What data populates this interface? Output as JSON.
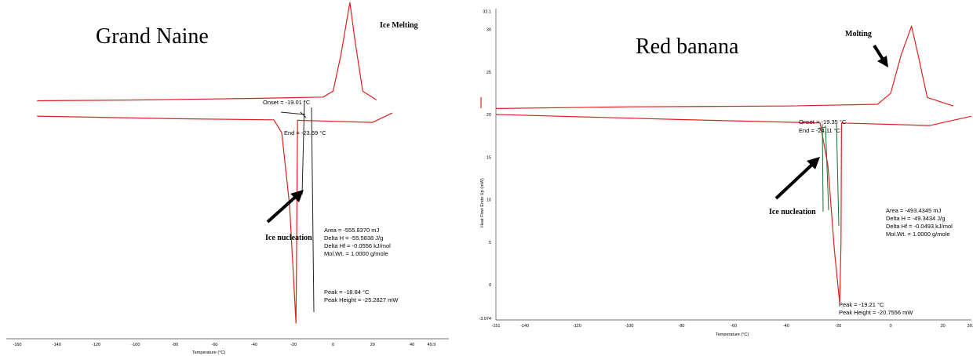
{
  "chart_data": [
    {
      "type": "line",
      "panel": "left",
      "title": "Grand Naine",
      "xlabel": "Temperature (°C)",
      "ylabel": "",
      "xlim": [
        -160,
        49.9
      ],
      "x_ticks": [
        "-160",
        "-140",
        "-120",
        "-100",
        "-80",
        "-60",
        "-40",
        "-20",
        "0",
        "20",
        "40",
        "49.9"
      ],
      "line_color": "#e02020",
      "series": [
        {
          "values": [
            {
              "x": -150,
              "y": 0.15
            },
            {
              "x": -100,
              "y": 0.3
            },
            {
              "x": -40,
              "y": 0.6
            },
            {
              "x": -5,
              "y": 0.85
            },
            {
              "x": 0,
              "y": 2
            },
            {
              "x": 4,
              "y": 9
            },
            {
              "x": 8.5,
              "y": 19
            },
            {
              "x": 11,
              "y": 12
            },
            {
              "x": 15,
              "y": 2
            },
            {
              "x": 22,
              "y": 0.3
            }
          ]
        },
        {
          "values": [
            {
              "x": -150,
              "y": -2.8
            },
            {
              "x": -80,
              "y": -3.3
            },
            {
              "x": -30,
              "y": -3.5
            },
            {
              "x": -26,
              "y": -6
            },
            {
              "x": -22,
              "y": -20
            },
            {
              "x": -18.8,
              "y": -42.5
            },
            {
              "x": -18.5,
              "y": -30
            },
            {
              "x": -18,
              "y": -3.6
            },
            {
              "x": 20,
              "y": -4
            },
            {
              "x": 30,
              "y": -2.2
            }
          ]
        }
      ],
      "annotations": {
        "peak_label": "Ice Melting",
        "arrow_label": "Ice nucleation",
        "onset": "Onset = -19.01 °C",
        "end": "End = -23.69 °C",
        "area": "Area = -555.8370 mJ",
        "delta_h": "Delta H = -55.5838 J/g",
        "delta_hf": "Delta Hf = -0.0556 kJ/mol",
        "mol_wt": "Mol.Wt. = 1.0000 g/mole",
        "peak": "Peak = -18.84 °C",
        "peak_height": "Peak Height = -25.2827 mW"
      }
    },
    {
      "type": "line",
      "panel": "right",
      "title": "Red banana",
      "xlabel": "Temperature (°C)",
      "ylabel": "Heat Flow Endo Up (mW)",
      "xlim": [
        -151,
        30.9
      ],
      "ylim": [
        -3.974,
        32.1
      ],
      "x_ticks": [
        "-151",
        "-140",
        "-120",
        "-100",
        "-80",
        "-60",
        "-40",
        "-20",
        "0",
        "20",
        "30.9"
      ],
      "y_ticks": [
        "32.1",
        "30",
        "25",
        "20",
        "15",
        "10",
        "5",
        "0",
        "-3.974"
      ],
      "line_color": "#e02020",
      "series": [
        {
          "values": [
            {
              "x": -151,
              "y": 20.7
            },
            {
              "x": -100,
              "y": 20.9
            },
            {
              "x": -40,
              "y": 21
            },
            {
              "x": -5,
              "y": 21.2
            },
            {
              "x": 0,
              "y": 22.5
            },
            {
              "x": 4,
              "y": 27
            },
            {
              "x": 8,
              "y": 30.4
            },
            {
              "x": 10.5,
              "y": 27
            },
            {
              "x": 14,
              "y": 22
            },
            {
              "x": 24,
              "y": 21
            }
          ]
        },
        {
          "values": [
            {
              "x": -151,
              "y": 20
            },
            {
              "x": -80,
              "y": 19.4
            },
            {
              "x": -27,
              "y": 19
            },
            {
              "x": -24,
              "y": 14
            },
            {
              "x": -21.5,
              "y": 4
            },
            {
              "x": -19.5,
              "y": -2.2
            },
            {
              "x": -19,
              "y": 5
            },
            {
              "x": -18.8,
              "y": 19
            },
            {
              "x": 15,
              "y": 18.7
            },
            {
              "x": 30.9,
              "y": 19.8
            }
          ]
        }
      ],
      "annotations": {
        "peak_label": "Molting",
        "arrow_label": "Ice nucleation",
        "onset": "Onset = -19.35 °C",
        "end": "End = -24.11 °C",
        "area": "Area = -493.4345 mJ",
        "delta_h": "Delta H = -49.3434 J/g",
        "delta_hf": "Delta Hf = -0.0493 kJ/mol",
        "mol_wt": "Mol.Wt. = 1.0000 g/mole",
        "peak": "Peak = -19.21 °C",
        "peak_height": "Peak Height = -20.7556 mW"
      }
    }
  ]
}
